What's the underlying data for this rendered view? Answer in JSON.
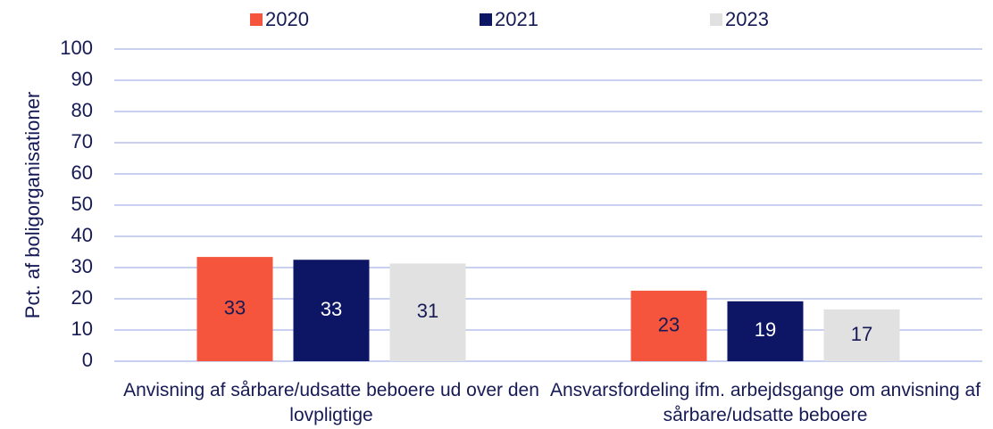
{
  "chart_data": {
    "type": "bar",
    "y_label": "Pct. af boligorganisationer",
    "categories": [
      "Anvisning af sårbare/udsatte beboere ud over den lovpligtige",
      "Ansvarsfordeling ifm. arbejdsgange om anvisning af sårbare/udsatte beboere"
    ],
    "series": [
      {
        "name": "2020",
        "color": "#f4553c",
        "values": [
          33.4,
          22.6
        ],
        "value_labels": [
          "33",
          "23"
        ]
      },
      {
        "name": "2021",
        "color": "#0c1664",
        "values": [
          32.5,
          19.2
        ],
        "value_labels": [
          "33",
          "19"
        ]
      },
      {
        "name": "2023",
        "color": "#e1e1e1",
        "values": [
          31.3,
          16.6
        ],
        "value_labels": [
          "31",
          "17"
        ]
      }
    ],
    "ylim": [
      0,
      100
    ],
    "yticks": [
      0,
      10,
      20,
      30,
      40,
      50,
      60,
      70,
      80,
      90,
      100
    ],
    "grid": true,
    "legend": "top"
  }
}
